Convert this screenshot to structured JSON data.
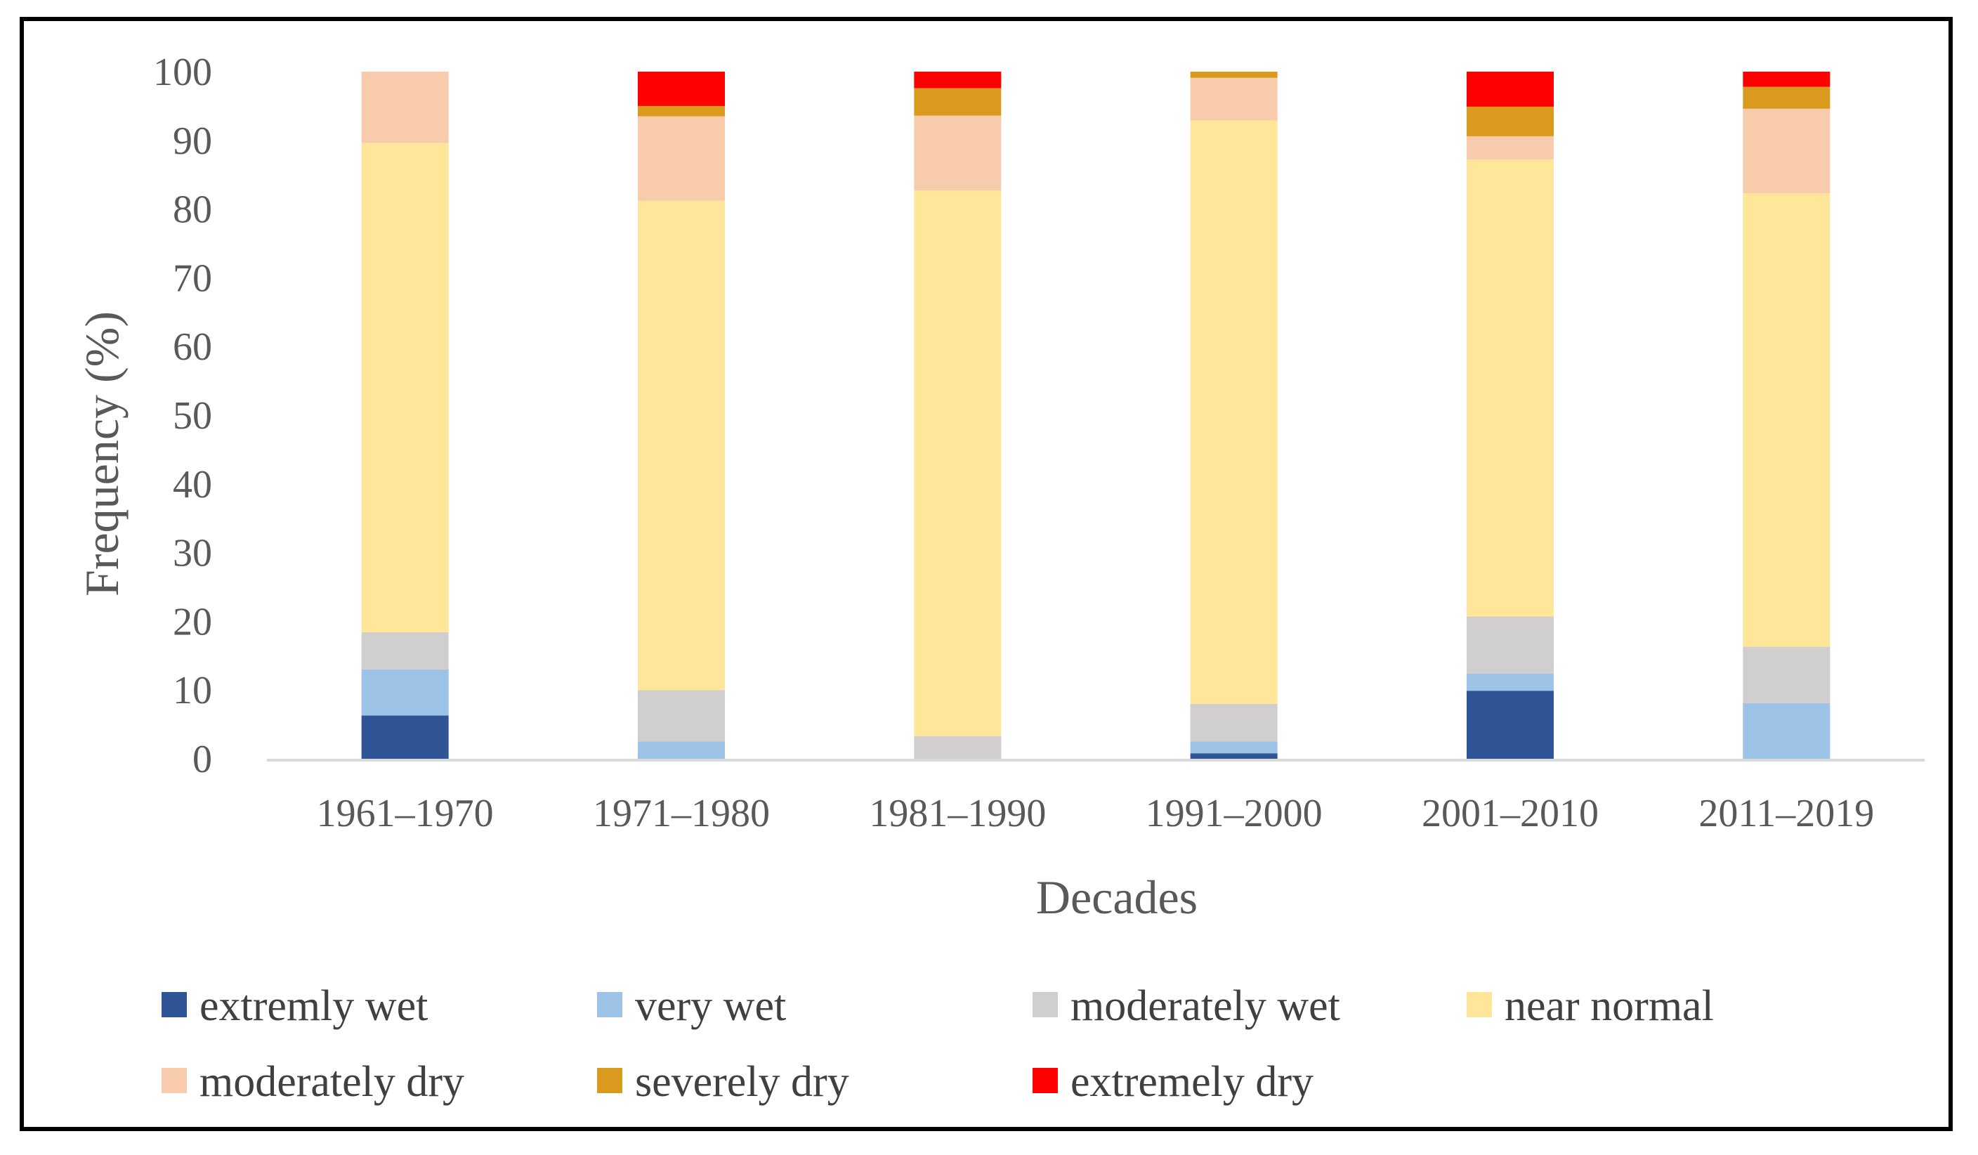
{
  "chart_data": {
    "type": "bar",
    "stacked": true,
    "title": "",
    "xlabel": "Decades",
    "ylabel": "Frequency (%)",
    "ylim": [
      0,
      100
    ],
    "yticks": [
      0,
      10,
      20,
      30,
      40,
      50,
      60,
      70,
      80,
      90,
      100
    ],
    "grid": false,
    "legend_position": "bottom",
    "categories": [
      "1961–1970",
      "1971–1980",
      "1981–1990",
      "1991–2000",
      "2001–2010",
      "2011–2019"
    ],
    "series": [
      {
        "name": "extremly wet",
        "color": "#2F5597",
        "values": [
          6.3,
          0,
          0,
          0.8,
          9.9,
          0
        ]
      },
      {
        "name": "very wet",
        "color": "#9DC3E6",
        "values": [
          6.7,
          2.5,
          0,
          1.7,
          2.5,
          8.1
        ]
      },
      {
        "name": "moderately wet",
        "color": "#D0CECE",
        "values": [
          5.4,
          7.5,
          3.3,
          5.5,
          8.3,
          8.2
        ]
      },
      {
        "name": "near normal",
        "color": "#FFE699",
        "values": [
          71.2,
          71.2,
          79.4,
          84.9,
          66.5,
          66.0
        ]
      },
      {
        "name": "moderately dry",
        "color": "#F8CBAD",
        "values": [
          10.4,
          12.3,
          10.9,
          6.2,
          3.4,
          12.3
        ]
      },
      {
        "name": "severely dry",
        "color": "#D99A1D",
        "values": [
          0,
          1.5,
          4.0,
          0.9,
          4.3,
          3.2
        ]
      },
      {
        "name": "extremely dry",
        "color": "#FF0000",
        "values": [
          0,
          5.0,
          2.4,
          0,
          5.1,
          2.2
        ]
      }
    ]
  }
}
